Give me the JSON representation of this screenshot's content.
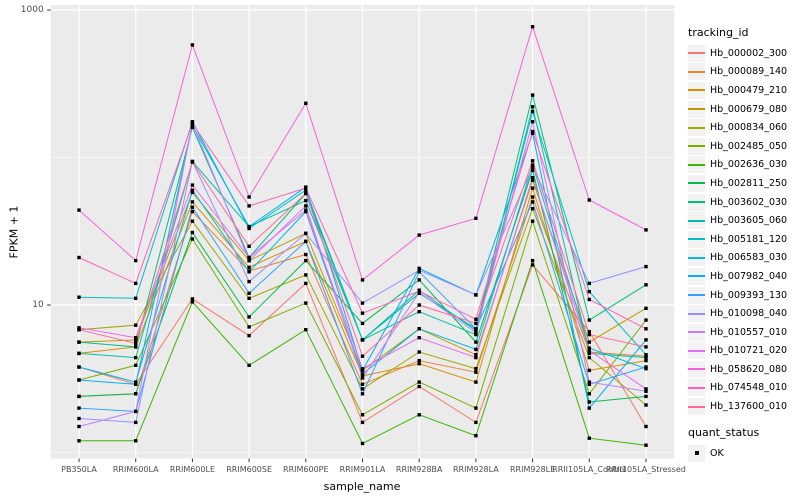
{
  "chart_data": {
    "type": "line",
    "xlabel": "sample_name",
    "ylabel": "FPKM + 1",
    "y_scale": "log10",
    "ylim": [
      0.93,
      1070
    ],
    "y_ticks": [
      1000,
      10
    ],
    "y_tick_labels": [
      "1000",
      "10"
    ],
    "y_minor_gridlines": [
      100,
      1
    ],
    "grid": "major-and-minor",
    "legend_position": "right",
    "panel_bg": "#ebebeb",
    "grid_color": "#ffffff",
    "point_color": "#000000",
    "categories": [
      "PB350LA",
      "RRIM600LA",
      "RRIM600LE",
      "RRIM600SE",
      "RRIM600PE",
      "RRIM901LA",
      "RRIM928BA",
      "RRIM928LA",
      "RRIM928LE",
      "RRII105LA_Control",
      "RRII105LA_Stressed"
    ],
    "series": [
      {
        "name": "Hb_000002_300",
        "color": "#F8766D",
        "values": [
          3.8,
          2.9,
          11.0,
          6.2,
          14.0,
          1.6,
          2.8,
          1.6,
          18.7,
          6.6,
          1.5
        ]
      },
      {
        "name": "Hb_000089_140",
        "color": "#EA8331",
        "values": [
          2.4,
          2.5,
          43.0,
          17.0,
          22.0,
          2.9,
          4.2,
          3.5,
          54.0,
          4.8,
          4.5
        ]
      },
      {
        "name": "Hb_000479_210",
        "color": "#D89000",
        "values": [
          4.7,
          5.2,
          50.0,
          18.0,
          27.0,
          3.3,
          4.0,
          3.0,
          62.0,
          3.6,
          4.2
        ]
      },
      {
        "name": "Hb_000679_080",
        "color": "#C09B00",
        "values": [
          5.6,
          5.8,
          58.0,
          20.0,
          30.6,
          3.6,
          6.9,
          4.6,
          70.0,
          5.6,
          9.5
        ]
      },
      {
        "name": "Hb_000834_060",
        "color": "#A3A500",
        "values": [
          6.8,
          7.3,
          37.0,
          11.1,
          16.0,
          2.7,
          4.8,
          3.7,
          45.0,
          4.4,
          2.1
        ]
      },
      {
        "name": "Hb_002485_050",
        "color": "#7CAE00",
        "values": [
          3.1,
          3.9,
          28.0,
          7.1,
          10.3,
          1.8,
          3.0,
          2.0,
          37.0,
          2.5,
          7.9
        ]
      },
      {
        "name": "Hb_002636_030",
        "color": "#39B600",
        "values": [
          1.2,
          1.2,
          10.5,
          3.9,
          6.8,
          1.15,
          1.8,
          1.3,
          20.0,
          1.25,
          1.12
        ]
      },
      {
        "name": "Hb_002811_250",
        "color": "#00BB4E",
        "values": [
          2.4,
          2.5,
          31.0,
          8.3,
          20.0,
          7.5,
          14.8,
          5.6,
          82.0,
          2.2,
          2.4
        ]
      },
      {
        "name": "Hb_003602_030",
        "color": "#00BF7D",
        "values": [
          5.6,
          5.2,
          160.0,
          21.0,
          57.0,
          5.8,
          12.0,
          6.9,
          265.0,
          7.9,
          13.7
        ]
      },
      {
        "name": "Hb_003605_060",
        "color": "#00C1A3",
        "values": [
          4.7,
          4.4,
          94.0,
          34.0,
          51.0,
          5.8,
          9.0,
          6.3,
          221.0,
          4.7,
          4.4
        ]
      },
      {
        "name": "Hb_005181_120",
        "color": "#00BFC4",
        "values": [
          11.3,
          11.1,
          175.0,
          33.0,
          60.0,
          5.8,
          12.6,
          6.7,
          205.0,
          12.3,
          4.6
        ]
      },
      {
        "name": "Hb_006583_030",
        "color": "#00BAE0",
        "values": [
          3.8,
          3.0,
          60.0,
          16.8,
          43.0,
          3.4,
          6.9,
          5.0,
          89.0,
          5.1,
          3.7
        ]
      },
      {
        "name": "Hb_007982_040",
        "color": "#00B0F6",
        "values": [
          3.1,
          2.9,
          165.0,
          34.0,
          63.0,
          3.6,
          17.7,
          11.7,
          146.0,
          2.0,
          5.8
        ]
      },
      {
        "name": "Hb_009393_130",
        "color": "#35A2FF",
        "values": [
          2.0,
          1.9,
          46.0,
          12.0,
          27.0,
          2.5,
          16.8,
          6.9,
          50.0,
          2.9,
          3.8
        ]
      },
      {
        "name": "Hb_010098_040",
        "color": "#9590FF",
        "values": [
          1.7,
          1.6,
          94.0,
          14.4,
          30.6,
          10.3,
          17.2,
          11.7,
          86.0,
          14.0,
          18.2
        ]
      },
      {
        "name": "Hb_010557_010",
        "color": "#C77CFF",
        "values": [
          1.5,
          1.9,
          170.0,
          20.0,
          47.0,
          3.2,
          12.2,
          6.5,
          175.0,
          3.0,
          2.6
        ]
      },
      {
        "name": "Hb_010721_020",
        "color": "#E76BF3",
        "values": [
          7.0,
          6.0,
          65.0,
          21.0,
          44.0,
          3.7,
          6.0,
          4.4,
          73.0,
          4.9,
          2.7
        ]
      },
      {
        "name": "Hb_058620_080",
        "color": "#FA62DB",
        "values": [
          44.0,
          20.0,
          580.0,
          54.0,
          233.0,
          14.8,
          29.8,
          38.7,
          770.0,
          51.5,
          32.3
        ]
      },
      {
        "name": "Hb_074548_010",
        "color": "#FF62BC",
        "values": [
          21.0,
          14.0,
          170.0,
          47.0,
          62.0,
          8.8,
          12.4,
          8.0,
          150.0,
          10.9,
          6.9
        ]
      },
      {
        "name": "Hb_137600_010",
        "color": "#FF6A98",
        "values": [
          6.8,
          5.5,
          93.0,
          25.0,
          57.0,
          4.5,
          10.0,
          7.5,
          95.0,
          6.3,
          5.2
        ]
      }
    ]
  },
  "legend": {
    "tracking_title": "tracking_id",
    "quant_title": "quant_status",
    "quant_items": [
      {
        "label": "OK"
      }
    ],
    "key_bg": "#f2f2f2"
  }
}
